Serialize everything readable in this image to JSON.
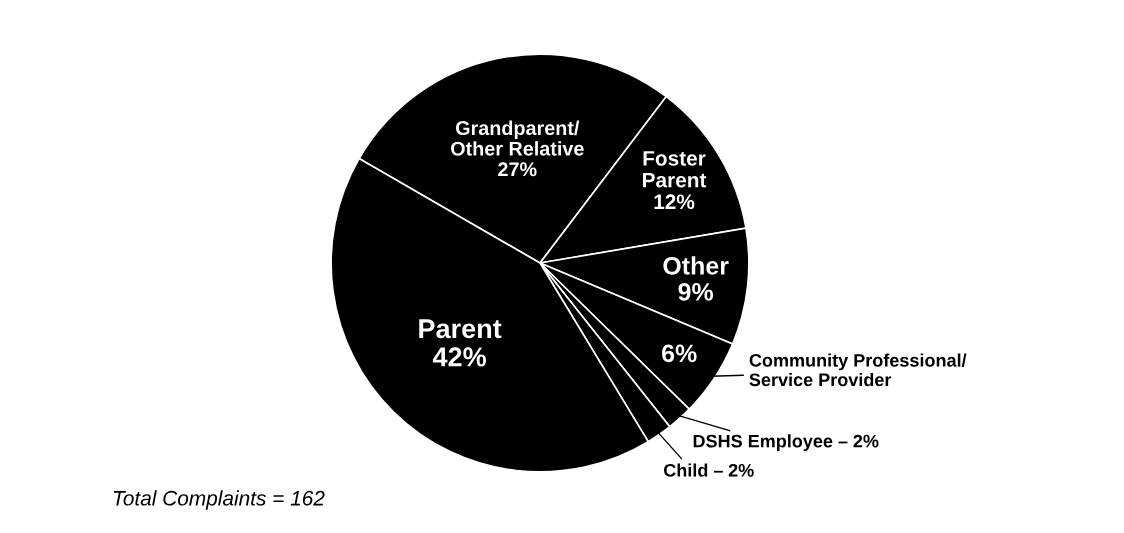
{
  "chart_data": {
    "type": "pie",
    "categories": [
      "Grandparent/\nOther Relative",
      "Foster\nParent",
      "Other",
      "Community Professional/\nService Provider",
      "DSHS Employee –",
      "Child –",
      "Parent"
    ],
    "values": [
      27,
      12,
      9,
      6,
      2,
      2,
      42
    ],
    "colors": [
      "#000000",
      "#000000",
      "#000000",
      "#000000",
      "#000000",
      "#000000",
      "#000000"
    ],
    "value_labels": [
      "27%",
      "12%",
      "9%",
      "6%",
      "2%",
      "2%",
      "42%"
    ],
    "legend": false,
    "annotations": [
      "Total Complaints = 162"
    ]
  }
}
